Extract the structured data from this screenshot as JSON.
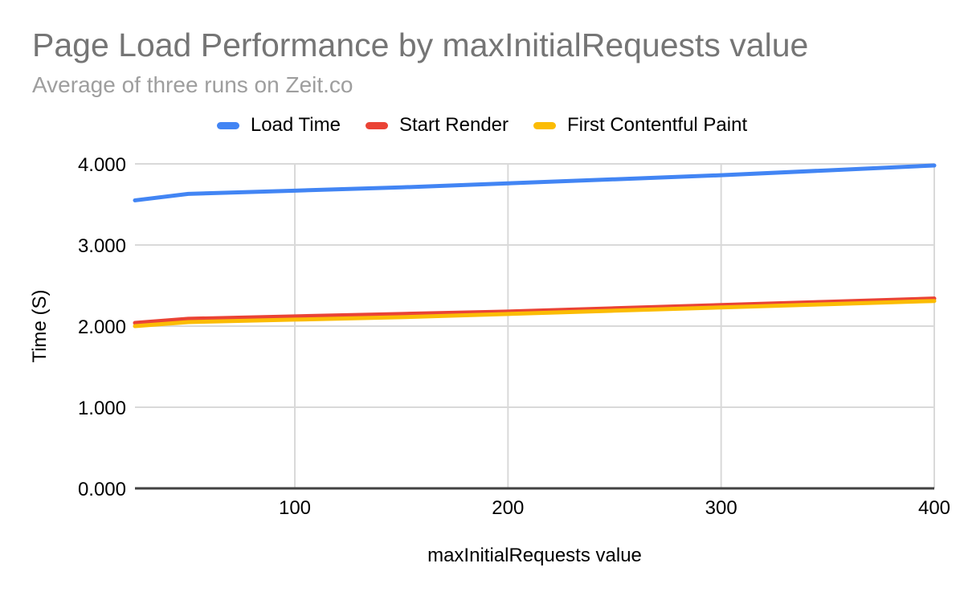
{
  "header": {
    "title": "Page Load Performance by maxInitialRequests value",
    "subtitle": "Average of three runs on Zeit.co"
  },
  "legend": {
    "items": [
      {
        "label": "Load Time",
        "color": "#4285F4"
      },
      {
        "label": "Start Render",
        "color": "#EA4335"
      },
      {
        "label": "First Contentful Paint",
        "color": "#FBBC04"
      }
    ]
  },
  "chart_data": {
    "type": "line",
    "title": "Page Load Performance by maxInitialRequests value",
    "subtitle": "Average of three runs on Zeit.co",
    "xlabel": "maxInitialRequests value",
    "ylabel": "Time (S)",
    "xlim": [
      25,
      400
    ],
    "ylim": [
      0,
      4
    ],
    "grid": true,
    "legend_position": "top",
    "x_ticks": [
      {
        "value": 100,
        "label": "100"
      },
      {
        "value": 200,
        "label": "200"
      },
      {
        "value": 300,
        "label": "300"
      },
      {
        "value": 400,
        "label": "400"
      }
    ],
    "y_ticks": [
      {
        "value": 0,
        "label": "0.000"
      },
      {
        "value": 1,
        "label": "1.000"
      },
      {
        "value": 2,
        "label": "2.000"
      },
      {
        "value": 3,
        "label": "3.000"
      },
      {
        "value": 4,
        "label": "4.000"
      }
    ],
    "x": [
      25,
      50,
      100,
      150,
      200,
      250,
      300,
      350,
      400
    ],
    "series": [
      {
        "name": "Load Time",
        "color": "#4285F4",
        "values": [
          3.55,
          3.63,
          3.67,
          3.71,
          3.76,
          3.81,
          3.86,
          3.92,
          3.98
        ]
      },
      {
        "name": "Start Render",
        "color": "#EA4335",
        "values": [
          2.04,
          2.09,
          2.12,
          2.15,
          2.18,
          2.22,
          2.26,
          2.3,
          2.34
        ]
      },
      {
        "name": "First Contentful Paint",
        "color": "#FBBC04",
        "values": [
          2.0,
          2.05,
          2.08,
          2.11,
          2.15,
          2.19,
          2.23,
          2.27,
          2.31
        ]
      }
    ]
  },
  "colors": {
    "background": "#ffffff",
    "title_text": "#757575",
    "subtitle_text": "#9e9e9e",
    "axis_text": "#000000",
    "gridline": "#d9d9d9",
    "axis_line": "#424242",
    "series_blue": "#4285F4",
    "series_red": "#EA4335",
    "series_yellow": "#FBBC04"
  }
}
